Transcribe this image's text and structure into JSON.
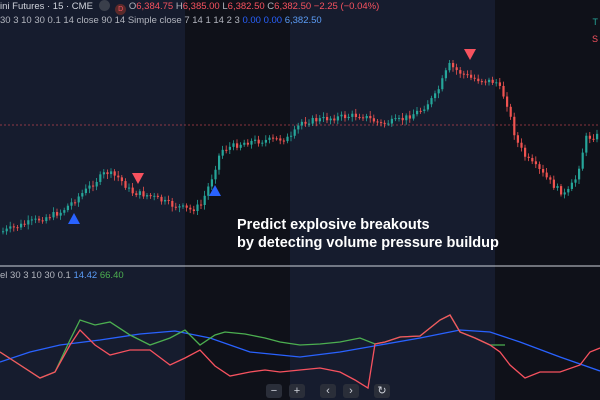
{
  "header": {
    "symbol": "ini Futures · 15 · CME",
    "badge_d": "D",
    "ohlc": [
      {
        "label": "O",
        "value": "6,384.75"
      },
      {
        "label": "H",
        "value": "6,385.00"
      },
      {
        "label": "L",
        "value": "6,382.50"
      },
      {
        "label": "C",
        "value": "6,382.50"
      }
    ],
    "change": "−2.25 (−0.04%)",
    "indicator_params": "30 3 10 30 0.1 14 close 90 14 Simple close 7 14 1 14 2 3",
    "indicator_values": [
      "0.00",
      "0.00",
      "6,382.50"
    ]
  },
  "right_tags": [
    "T",
    "S"
  ],
  "annotation": {
    "line1": "Predict explosive breakouts",
    "line2": "by detecting volume pressure buildup"
  },
  "lower_pane": {
    "params": "el 30 3 10 30 0.1",
    "value_blue": "14.42",
    "value_green": "66.40"
  },
  "toolbar": [
    "−",
    "+",
    "‹",
    "›",
    "↻"
  ],
  "colors": {
    "background": "#131722",
    "up": "#26a69a",
    "down": "#ef5350",
    "signal_up": "#2962ff",
    "signal_down": "#f7525f",
    "osc_green": "#4caf50",
    "osc_red": "#f7525f",
    "osc_blue": "#2962ff"
  }
}
